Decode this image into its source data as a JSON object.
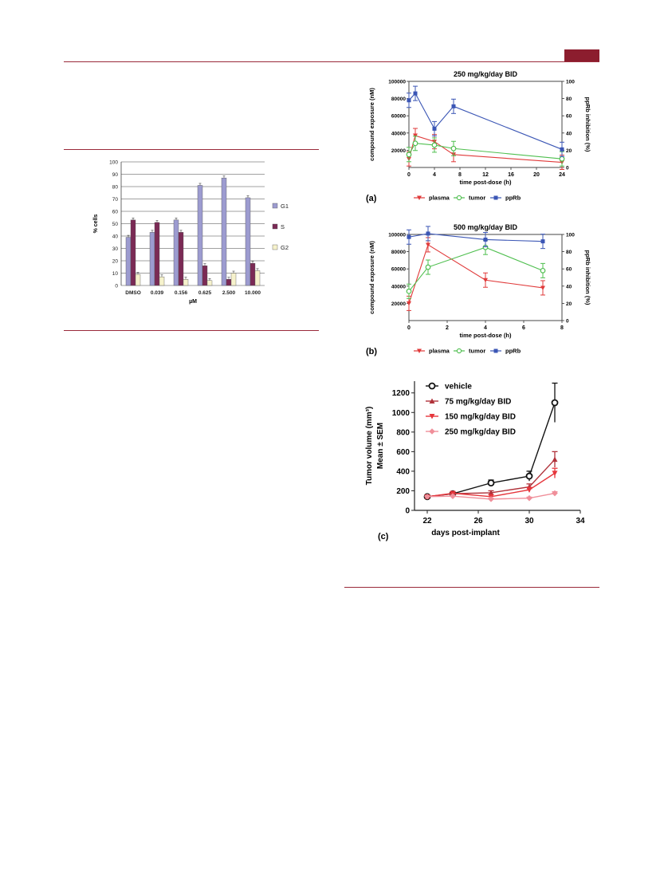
{
  "colors": {
    "accent": "#8c1d2e",
    "g1": "#9c9bd0",
    "s": "#7b2a55",
    "g2": "#f6f2cc",
    "plasma": "#e03a3a",
    "tumor": "#4fbf4f",
    "pprb": "#3b56b5",
    "vehicle": "#111111",
    "d75": "#b0323a",
    "d150": "#e6363c",
    "d250": "#f08f9a"
  },
  "bar_chart": {
    "type": "bar",
    "categories": [
      "DMSO",
      "0.039",
      "0.156",
      "0.625",
      "2.500",
      "10.000"
    ],
    "series": [
      {
        "name": "G1",
        "values": [
          39,
          43,
          53,
          81,
          87,
          71
        ]
      },
      {
        "name": "S",
        "values": [
          53,
          51,
          43,
          16,
          5,
          18
        ]
      },
      {
        "name": "G2",
        "values": [
          9,
          7,
          5,
          4,
          10,
          12
        ]
      }
    ],
    "ylabel": "% cells",
    "xlabel": "µM",
    "ylim": [
      0,
      100
    ],
    "yticks": [
      "0",
      "10",
      "20",
      "30",
      "40",
      "50",
      "60",
      "70",
      "80",
      "90",
      "100"
    ],
    "legend": [
      "G1",
      "S",
      "G2"
    ]
  },
  "panel_a": {
    "type": "line",
    "title": "250 mg/kg/day BID",
    "label": "(a)",
    "xlabel": "time post-dose (h)",
    "ylabel_left": "compound exposure (nM)",
    "ylabel_right": "ppRb inhibition (%)",
    "xticks": [
      "0",
      "4",
      "8",
      "12",
      "16",
      "20",
      "24"
    ],
    "yticks_left": [
      "20000",
      "40000",
      "60000",
      "80000",
      "100000"
    ],
    "yticks_right": [
      "0",
      "20",
      "40",
      "60",
      "80",
      "100"
    ],
    "legend": [
      "plasma",
      "tumor",
      "ppRb"
    ],
    "series": [
      {
        "name": "plasma",
        "x": [
          0,
          1,
          4,
          7,
          24
        ],
        "y": [
          10000,
          37000,
          30000,
          15000,
          6000
        ]
      },
      {
        "name": "tumor",
        "x": [
          0,
          1,
          4,
          7,
          24
        ],
        "y": [
          15000,
          28000,
          26000,
          22000,
          10000
        ]
      },
      {
        "name": "ppRb",
        "x": [
          0,
          1,
          4,
          7,
          24
        ],
        "y": [
          78,
          86,
          45,
          71,
          21
        ]
      }
    ]
  },
  "panel_b": {
    "type": "line",
    "title": "500 mg/kg/day BID",
    "label": "(b)",
    "xlabel": "time post-dose (h)",
    "ylabel_left": "compound exposure (nM)",
    "ylabel_right": "ppRb inhibition (%)",
    "xticks": [
      "0",
      "2",
      "4",
      "6",
      "8"
    ],
    "yticks_left": [
      "20000",
      "40000",
      "60000",
      "80000",
      "100000"
    ],
    "yticks_right": [
      "0",
      "20",
      "40",
      "60",
      "80",
      "100"
    ],
    "legend": [
      "plasma",
      "tumor",
      "ppRb"
    ],
    "series": [
      {
        "name": "plasma",
        "x": [
          0,
          1,
          4,
          7
        ],
        "y": [
          20000,
          88000,
          47000,
          38000
        ]
      },
      {
        "name": "tumor",
        "x": [
          0,
          1,
          4,
          7
        ],
        "y": [
          34000,
          62000,
          85000,
          58000
        ]
      },
      {
        "name": "ppRb",
        "x": [
          0,
          1,
          4,
          7
        ],
        "y": [
          97,
          101,
          94,
          92
        ]
      }
    ]
  },
  "panel_c": {
    "type": "line",
    "label": "(c)",
    "xlabel": "days post-implant",
    "ylabel_line1": "Tumor volume (mm³)",
    "ylabel_line2": "Mean ± SEM",
    "xticks": [
      "22",
      "26",
      "30",
      "34"
    ],
    "yticks": [
      "0",
      "200",
      "400",
      "600",
      "800",
      "1000",
      "1200"
    ],
    "legend": [
      "vehicle",
      "75 mg/kg/day BID",
      "150 mg/kg/day BID",
      "250 mg/kg/day BID"
    ],
    "series": [
      {
        "name": "vehicle",
        "x": [
          22,
          24,
          27,
          30,
          32
        ],
        "y": [
          140,
          170,
          280,
          350,
          1100
        ]
      },
      {
        "name": "75 mg/kg/day BID",
        "x": [
          22,
          24,
          27,
          30,
          32
        ],
        "y": [
          140,
          170,
          180,
          240,
          520
        ]
      },
      {
        "name": "150 mg/kg/day BID",
        "x": [
          22,
          24,
          27,
          30,
          32
        ],
        "y": [
          140,
          175,
          140,
          210,
          380
        ]
      },
      {
        "name": "250 mg/kg/day BID",
        "x": [
          22,
          24,
          27,
          30,
          32
        ],
        "y": [
          140,
          145,
          115,
          125,
          175
        ]
      }
    ]
  }
}
